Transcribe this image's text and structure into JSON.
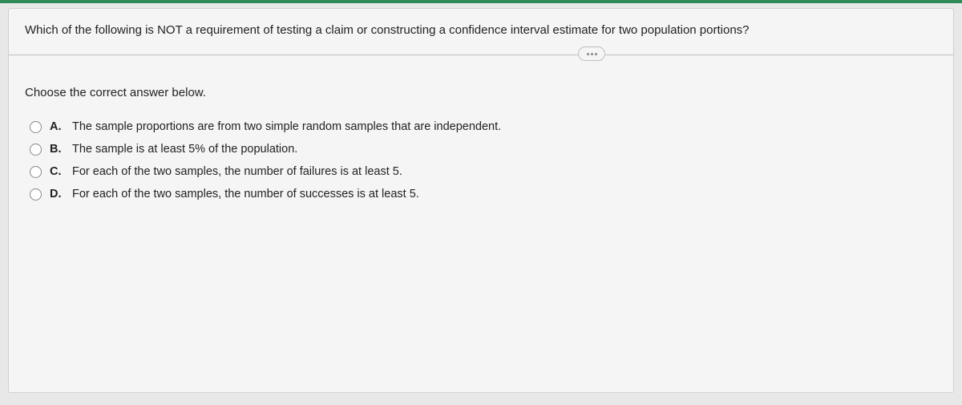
{
  "colors": {
    "accent": "#2e8b57",
    "page_bg": "#e8e8e8",
    "card_bg": "#f5f5f5",
    "border": "#d0d0d0",
    "divider": "#bfbfbf",
    "text": "#222222",
    "radio_border": "#888888"
  },
  "question": "Which of the following is NOT a requirement of testing a claim or constructing a confidence interval estimate for two population portions?",
  "instruction": "Choose the correct answer below.",
  "options": [
    {
      "letter": "A.",
      "text": "The sample proportions are from two simple random samples that are independent."
    },
    {
      "letter": "B.",
      "text": "The sample is at least 5% of the population."
    },
    {
      "letter": "C.",
      "text": "For each of the two samples, the number of failures is at least 5."
    },
    {
      "letter": "D.",
      "text": "For each of the two samples, the number of successes is at least 5."
    }
  ],
  "ellipsis_icon": "more-options"
}
